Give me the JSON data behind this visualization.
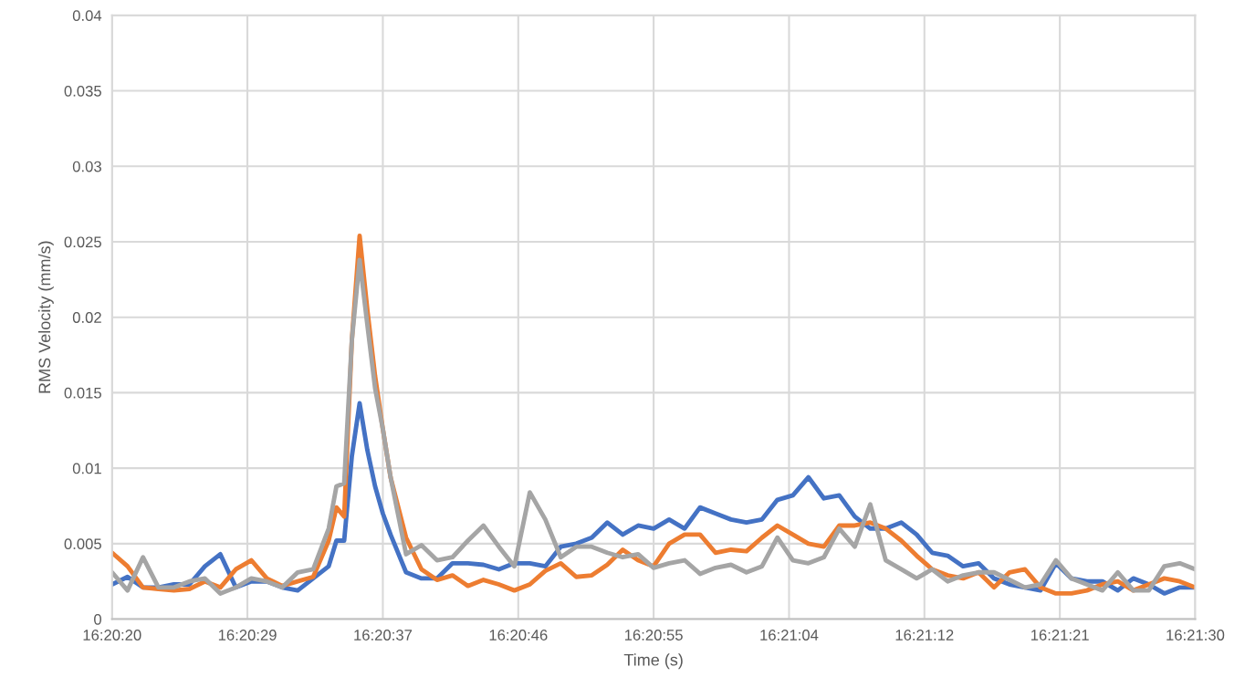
{
  "chart_data": {
    "type": "line",
    "xlabel": "Time (s)",
    "ylabel": "RMS Velocity (mm/s)",
    "grid": true,
    "marker": "none",
    "line_style": "solid",
    "x": [
      16.338889,
      16.339167,
      16.339444,
      16.339722,
      16.34,
      16.340278,
      16.340556,
      16.340833,
      16.341111,
      16.341389,
      16.341667,
      16.341944,
      16.342222,
      16.3425,
      16.342778,
      16.342917,
      16.343056,
      16.343194,
      16.343333,
      16.343472,
      16.343611,
      16.34375,
      16.343889,
      16.344167,
      16.344444,
      16.344722,
      16.345,
      16.345278,
      16.345556,
      16.345833,
      16.346111,
      16.346389,
      16.346667,
      16.346944,
      16.347222,
      16.3475,
      16.347778,
      16.348056,
      16.348333,
      16.348611,
      16.348889,
      16.349167,
      16.349444,
      16.349722,
      16.35,
      16.350278,
      16.350556,
      16.350833,
      16.351111,
      16.351389,
      16.351667,
      16.351944,
      16.352222,
      16.3525,
      16.352778,
      16.353056,
      16.353333,
      16.353611,
      16.353889,
      16.354167,
      16.354444,
      16.354722,
      16.355,
      16.355278,
      16.355556,
      16.355833,
      16.356111,
      16.356389,
      16.356667,
      16.356944,
      16.357222,
      16.3575,
      16.357778,
      16.358056,
      16.358333
    ],
    "xlim": [
      16.338889,
      16.358333
    ],
    "xticks": [
      {
        "value": 16.338889,
        "label": "16:20:20"
      },
      {
        "value": 16.341319,
        "label": "16:20:29"
      },
      {
        "value": 16.34375,
        "label": "16:20:37"
      },
      {
        "value": 16.346181,
        "label": "16:20:46"
      },
      {
        "value": 16.348611,
        "label": "16:20:55"
      },
      {
        "value": 16.351042,
        "label": "16:21:04"
      },
      {
        "value": 16.353472,
        "label": "16:21:12"
      },
      {
        "value": 16.355903,
        "label": "16:21:21"
      },
      {
        "value": 16.358333,
        "label": "16:21:30"
      }
    ],
    "ylim": [
      0,
      0.04
    ],
    "yticks": [
      0,
      0.005,
      0.01,
      0.015,
      0.02,
      0.025,
      0.03,
      0.035,
      0.04
    ],
    "series": [
      {
        "color": "#4472c4",
        "values": [
          0.0023,
          0.0028,
          0.0021,
          0.0021,
          0.0023,
          0.0023,
          0.0035,
          0.0043,
          0.0021,
          0.0025,
          0.0025,
          0.0021,
          0.0019,
          0.0027,
          0.0035,
          0.0052,
          0.0052,
          0.0108,
          0.0143,
          0.0112,
          0.0088,
          0.007,
          0.0056,
          0.0031,
          0.0027,
          0.0027,
          0.0037,
          0.0037,
          0.0036,
          0.0033,
          0.0037,
          0.0037,
          0.0035,
          0.0048,
          0.005,
          0.0054,
          0.0064,
          0.0056,
          0.0062,
          0.006,
          0.0066,
          0.006,
          0.0074,
          0.007,
          0.0066,
          0.0064,
          0.0066,
          0.0079,
          0.0082,
          0.0094,
          0.008,
          0.0082,
          0.0068,
          0.006,
          0.006,
          0.0064,
          0.0056,
          0.0044,
          0.0042,
          0.0035,
          0.0037,
          0.0027,
          0.0023,
          0.0021,
          0.0019,
          0.0037,
          0.0027,
          0.0025,
          0.0025,
          0.0019,
          0.0027,
          0.0023,
          0.0017,
          0.0021,
          0.0021
        ]
      },
      {
        "color": "#ed7d31",
        "values": [
          0.0044,
          0.0035,
          0.0021,
          0.002,
          0.0019,
          0.002,
          0.0025,
          0.0021,
          0.0033,
          0.0039,
          0.0027,
          0.0022,
          0.0025,
          0.0028,
          0.0052,
          0.0074,
          0.0068,
          0.0185,
          0.0254,
          0.0205,
          0.0161,
          0.0126,
          0.0094,
          0.0054,
          0.0033,
          0.0026,
          0.0029,
          0.0022,
          0.0026,
          0.0023,
          0.0019,
          0.0023,
          0.0032,
          0.0037,
          0.0028,
          0.0029,
          0.0036,
          0.0046,
          0.0039,
          0.0035,
          0.005,
          0.0056,
          0.0056,
          0.0044,
          0.0046,
          0.0045,
          0.0054,
          0.0062,
          0.0056,
          0.005,
          0.0048,
          0.0062,
          0.0062,
          0.0064,
          0.006,
          0.0052,
          0.0042,
          0.0033,
          0.0029,
          0.0027,
          0.0031,
          0.0021,
          0.0031,
          0.0033,
          0.0021,
          0.0017,
          0.0017,
          0.0019,
          0.0023,
          0.0025,
          0.0019,
          0.0023,
          0.0027,
          0.0025,
          0.0021
        ]
      },
      {
        "color": "#a5a5a5",
        "values": [
          0.0031,
          0.0019,
          0.0041,
          0.0021,
          0.0021,
          0.0025,
          0.0027,
          0.0017,
          0.0021,
          0.0027,
          0.0025,
          0.0021,
          0.0031,
          0.0033,
          0.006,
          0.0088,
          0.009,
          0.0185,
          0.0238,
          0.0195,
          0.0153,
          0.0126,
          0.0094,
          0.0043,
          0.0049,
          0.0039,
          0.0041,
          0.0052,
          0.0062,
          0.0048,
          0.0035,
          0.0084,
          0.0066,
          0.0041,
          0.0048,
          0.0048,
          0.0044,
          0.0041,
          0.0043,
          0.0034,
          0.0037,
          0.0039,
          0.003,
          0.0034,
          0.0036,
          0.0031,
          0.0035,
          0.0054,
          0.0039,
          0.0037,
          0.0041,
          0.006,
          0.0048,
          0.0076,
          0.0039,
          0.0033,
          0.0027,
          0.0033,
          0.0025,
          0.0029,
          0.0031,
          0.0031,
          0.0026,
          0.0021,
          0.0023,
          0.0039,
          0.0027,
          0.0023,
          0.0019,
          0.0031,
          0.0019,
          0.0019,
          0.0035,
          0.0037,
          0.0033
        ]
      }
    ]
  }
}
